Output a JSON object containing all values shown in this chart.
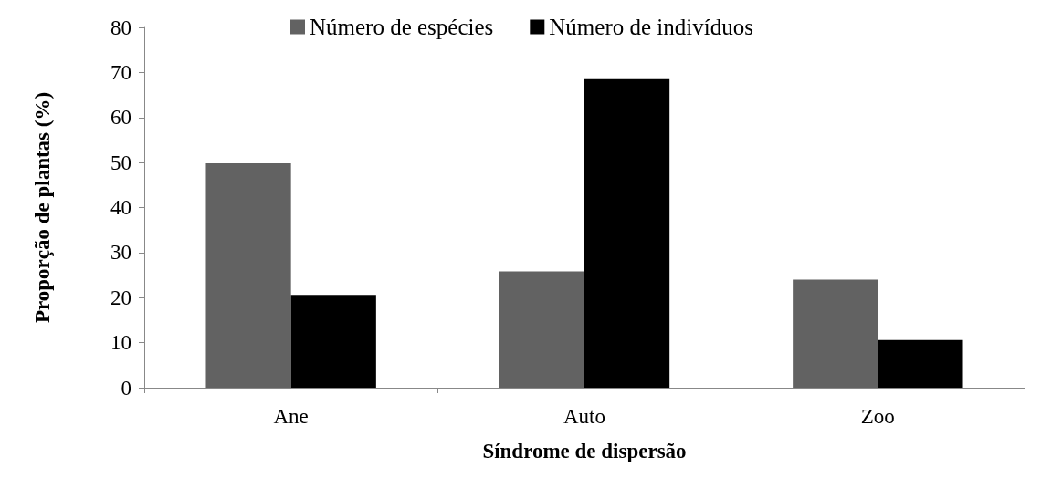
{
  "chart_data": {
    "type": "bar",
    "xlabel": "Síndrome de dispersão",
    "ylabel": "Proporção de plantas (%)",
    "categories": [
      "Ane",
      "Auto",
      "Zoo"
    ],
    "series": [
      {
        "name": "Número de espécies",
        "color": "#626262",
        "values": [
          49.8,
          25.8,
          24
        ]
      },
      {
        "name": "Número de indivíduos",
        "color": "#000000",
        "values": [
          20.6,
          68.5,
          10.6
        ]
      }
    ],
    "ylim": [
      0,
      80
    ],
    "yticks": [
      0,
      10,
      20,
      30,
      40,
      50,
      60,
      70,
      80
    ],
    "grid": false,
    "legend": "top"
  }
}
